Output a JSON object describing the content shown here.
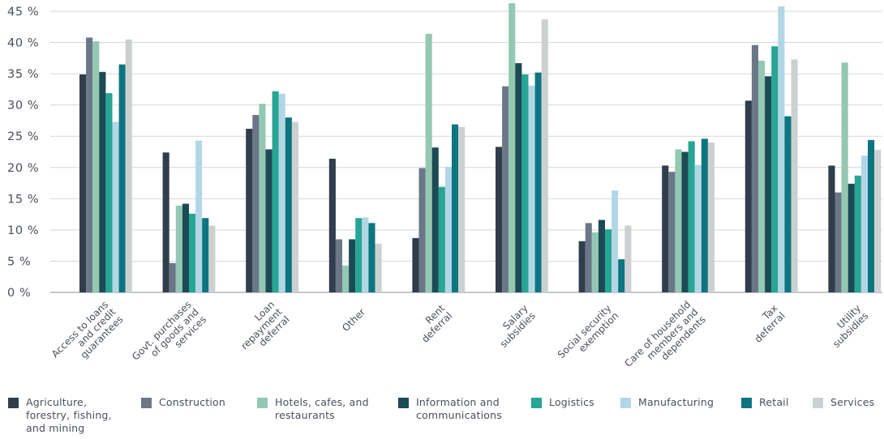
{
  "chart_data": {
    "type": "bar",
    "categories": [
      [
        "Access to loans",
        "and credit",
        "guarantees"
      ],
      [
        "Govt. purchases",
        "of goods and",
        "services"
      ],
      [
        "Loan",
        "repayment",
        "deferral"
      ],
      [
        "Other"
      ],
      [
        "Rent",
        "deferral"
      ],
      [
        "Salary",
        "subsidies"
      ],
      [
        "Social security",
        "exemption"
      ],
      [
        "Care of household",
        "members and",
        "dependents"
      ],
      [
        "Tax",
        "deferral"
      ],
      [
        "Utility",
        "subsidies"
      ]
    ],
    "ylim": [
      0,
      45
    ],
    "yticks": [
      0,
      5,
      10,
      15,
      20,
      25,
      30,
      35,
      40,
      45
    ],
    "ytick_labels": [
      "0 %",
      "5 %",
      "10 %",
      "15 %",
      "20 %",
      "25 %",
      "30 %",
      "35 %",
      "40 %",
      "45 %"
    ],
    "grid": true,
    "legend_position": "bottom",
    "series": [
      {
        "name": [
          "Agriculture,",
          "forestry, fishing,",
          "and mining"
        ],
        "color": "#2f3e4a",
        "values": [
          34.9,
          22.4,
          26.2,
          21.4,
          8.7,
          23.3,
          8.2,
          20.3,
          30.7,
          20.3
        ]
      },
      {
        "name": [
          "Construction"
        ],
        "color": "#6b7788",
        "values": [
          40.8,
          4.7,
          28.4,
          8.5,
          19.9,
          33.0,
          11.1,
          19.3,
          39.6,
          16.0
        ]
      },
      {
        "name": [
          "Hotels, cafes, and",
          "restaurants"
        ],
        "color": "#93c8b2",
        "values": [
          40.2,
          13.9,
          30.2,
          4.3,
          41.4,
          46.3,
          9.6,
          22.9,
          37.1,
          36.8
        ]
      },
      {
        "name": [
          "Information and",
          "communications"
        ],
        "color": "#1b4b55",
        "values": [
          35.3,
          14.2,
          22.9,
          8.5,
          23.2,
          36.7,
          11.6,
          22.5,
          34.6,
          17.4
        ]
      },
      {
        "name": [
          "Logistics"
        ],
        "color": "#27a595",
        "values": [
          31.9,
          12.6,
          32.2,
          11.9,
          16.9,
          34.9,
          10.1,
          24.2,
          39.4,
          18.7
        ]
      },
      {
        "name": [
          "Manufacturing"
        ],
        "color": "#b3d6e6",
        "values": [
          27.3,
          24.3,
          31.8,
          12.0,
          20.1,
          33.1,
          16.3,
          20.4,
          45.8,
          21.9
        ]
      },
      {
        "name": [
          "Retail"
        ],
        "color": "#0d7580",
        "values": [
          36.5,
          11.9,
          28.0,
          11.1,
          26.9,
          35.2,
          5.3,
          24.6,
          28.2,
          24.4
        ]
      },
      {
        "name": [
          "Services"
        ],
        "color": "#cdd0d1",
        "values": [
          40.5,
          10.7,
          27.3,
          7.8,
          26.5,
          43.7,
          10.7,
          24.0,
          37.3,
          22.8
        ]
      }
    ]
  }
}
